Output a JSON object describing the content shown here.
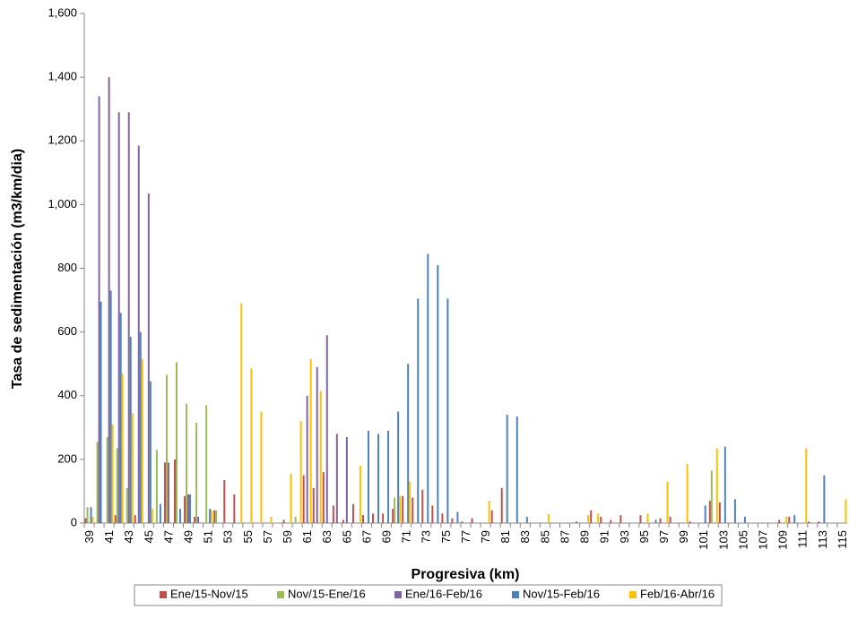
{
  "chart_data": {
    "type": "bar",
    "x_label": "Progresiva (km)",
    "y_label": "Tasa de sedimentación (m3/km/dia)",
    "categories": [
      "39",
      null,
      "41",
      null,
      "43",
      null,
      "45",
      null,
      "47",
      null,
      "49",
      null,
      "51",
      null,
      "53",
      null,
      "55",
      null,
      "57",
      null,
      "59",
      null,
      "61",
      null,
      "63",
      null,
      "65",
      null,
      "67",
      null,
      "69",
      null,
      "71",
      null,
      "73",
      null,
      "75",
      null,
      "77",
      null,
      "79",
      null,
      "81",
      null,
      "83",
      null,
      "85",
      null,
      "87",
      null,
      "89",
      null,
      "91",
      null,
      "93",
      null,
      "95",
      null,
      "97",
      null,
      "99",
      null,
      "101",
      null,
      "103",
      null,
      "105",
      null,
      "107",
      null,
      "109",
      null,
      "111",
      null,
      "113",
      null,
      "115"
    ],
    "series": [
      {
        "name": "Ene/15-Nov/15",
        "color": "#c0504d",
        "values": [
          15,
          0,
          0,
          25,
          0,
          25,
          0,
          0,
          190,
          200,
          85,
          20,
          0,
          40,
          135,
          90,
          0,
          0,
          0,
          0,
          10,
          0,
          150,
          110,
          160,
          55,
          10,
          60,
          25,
          30,
          30,
          45,
          85,
          80,
          105,
          55,
          30,
          15,
          5,
          15,
          0,
          40,
          110,
          0,
          0,
          0,
          0,
          0,
          0,
          0,
          0,
          40,
          20,
          10,
          25,
          0,
          25,
          0,
          15,
          20,
          0,
          5,
          0,
          70,
          65,
          0,
          0,
          0,
          0,
          0,
          10,
          20,
          0,
          5,
          5,
          0,
          0
        ]
      },
      {
        "name": "Nov/15-Ene/16",
        "color": "#9bbb59",
        "values": [
          50,
          255,
          270,
          235,
          110,
          0,
          0,
          230,
          465,
          505,
          375,
          315,
          370,
          40,
          0,
          0,
          0,
          0,
          0,
          0,
          0,
          20,
          0,
          0,
          0,
          0,
          0,
          0,
          0,
          0,
          0,
          80,
          0,
          0,
          0,
          0,
          0,
          0,
          0,
          0,
          0,
          0,
          0,
          0,
          0,
          0,
          0,
          0,
          0,
          0,
          0,
          0,
          0,
          0,
          0,
          0,
          0,
          0,
          0,
          0,
          0,
          0,
          0,
          165,
          0,
          0,
          0,
          0,
          0,
          0,
          0,
          0,
          0,
          0,
          0,
          0,
          0
        ]
      },
      {
        "name": "Ene/16-Feb/16",
        "color": "#8064a2",
        "values": [
          0,
          1340,
          1400,
          1290,
          1290,
          1185,
          1035,
          0,
          190,
          0,
          90,
          20,
          0,
          0,
          0,
          0,
          0,
          0,
          0,
          0,
          0,
          0,
          400,
          490,
          590,
          280,
          270,
          0,
          0,
          0,
          0,
          0,
          0,
          0,
          0,
          0,
          0,
          0,
          0,
          0,
          0,
          0,
          0,
          0,
          0,
          0,
          0,
          0,
          0,
          0,
          0,
          0,
          0,
          0,
          0,
          0,
          0,
          0,
          0,
          0,
          0,
          0,
          0,
          0,
          0,
          0,
          0,
          0,
          0,
          0,
          0,
          0,
          0,
          0,
          0,
          0,
          0
        ]
      },
      {
        "name": "Nov/15-Feb/16",
        "color": "#4f81bd",
        "values": [
          50,
          695,
          730,
          660,
          585,
          600,
          445,
          60,
          0,
          45,
          90,
          0,
          45,
          0,
          0,
          0,
          0,
          0,
          0,
          0,
          0,
          0,
          0,
          0,
          0,
          0,
          0,
          0,
          290,
          280,
          290,
          350,
          500,
          705,
          845,
          810,
          705,
          35,
          0,
          0,
          0,
          0,
          340,
          335,
          20,
          0,
          0,
          0,
          0,
          5,
          0,
          0,
          0,
          0,
          0,
          0,
          0,
          10,
          0,
          0,
          0,
          0,
          55,
          0,
          240,
          75,
          20,
          0,
          0,
          0,
          0,
          25,
          0,
          0,
          150,
          0,
          0
        ]
      },
      {
        "name": "Feb/16-Abr/16",
        "color": "#ffc000",
        "values": [
          20,
          0,
          310,
          470,
          345,
          515,
          45,
          0,
          0,
          0,
          0,
          0,
          40,
          0,
          0,
          690,
          485,
          350,
          20,
          0,
          155,
          320,
          515,
          415,
          0,
          0,
          0,
          180,
          0,
          0,
          0,
          85,
          130,
          0,
          0,
          0,
          0,
          0,
          0,
          0,
          70,
          0,
          0,
          0,
          0,
          0,
          28,
          0,
          0,
          0,
          25,
          30,
          0,
          0,
          0,
          0,
          30,
          0,
          130,
          0,
          185,
          0,
          0,
          235,
          0,
          0,
          0,
          0,
          0,
          0,
          20,
          0,
          235,
          0,
          0,
          0,
          75
        ]
      }
    ],
    "ylim": [
      0,
      1600
    ],
    "yticks": [
      0,
      {
        "value": 200,
        "label": "200"
      },
      {
        "value": 400,
        "label": "400"
      },
      {
        "value": 600,
        "label": "600"
      },
      {
        "value": 800,
        "label": "800"
      },
      {
        "value": 1000,
        "label": "1,000"
      },
      {
        "value": 1200,
        "label": "1,200"
      },
      {
        "value": 1400,
        "label": "1,400"
      },
      {
        "value": 1600,
        "label": "1,600"
      }
    ],
    "grid": false,
    "legend": "bottom"
  }
}
